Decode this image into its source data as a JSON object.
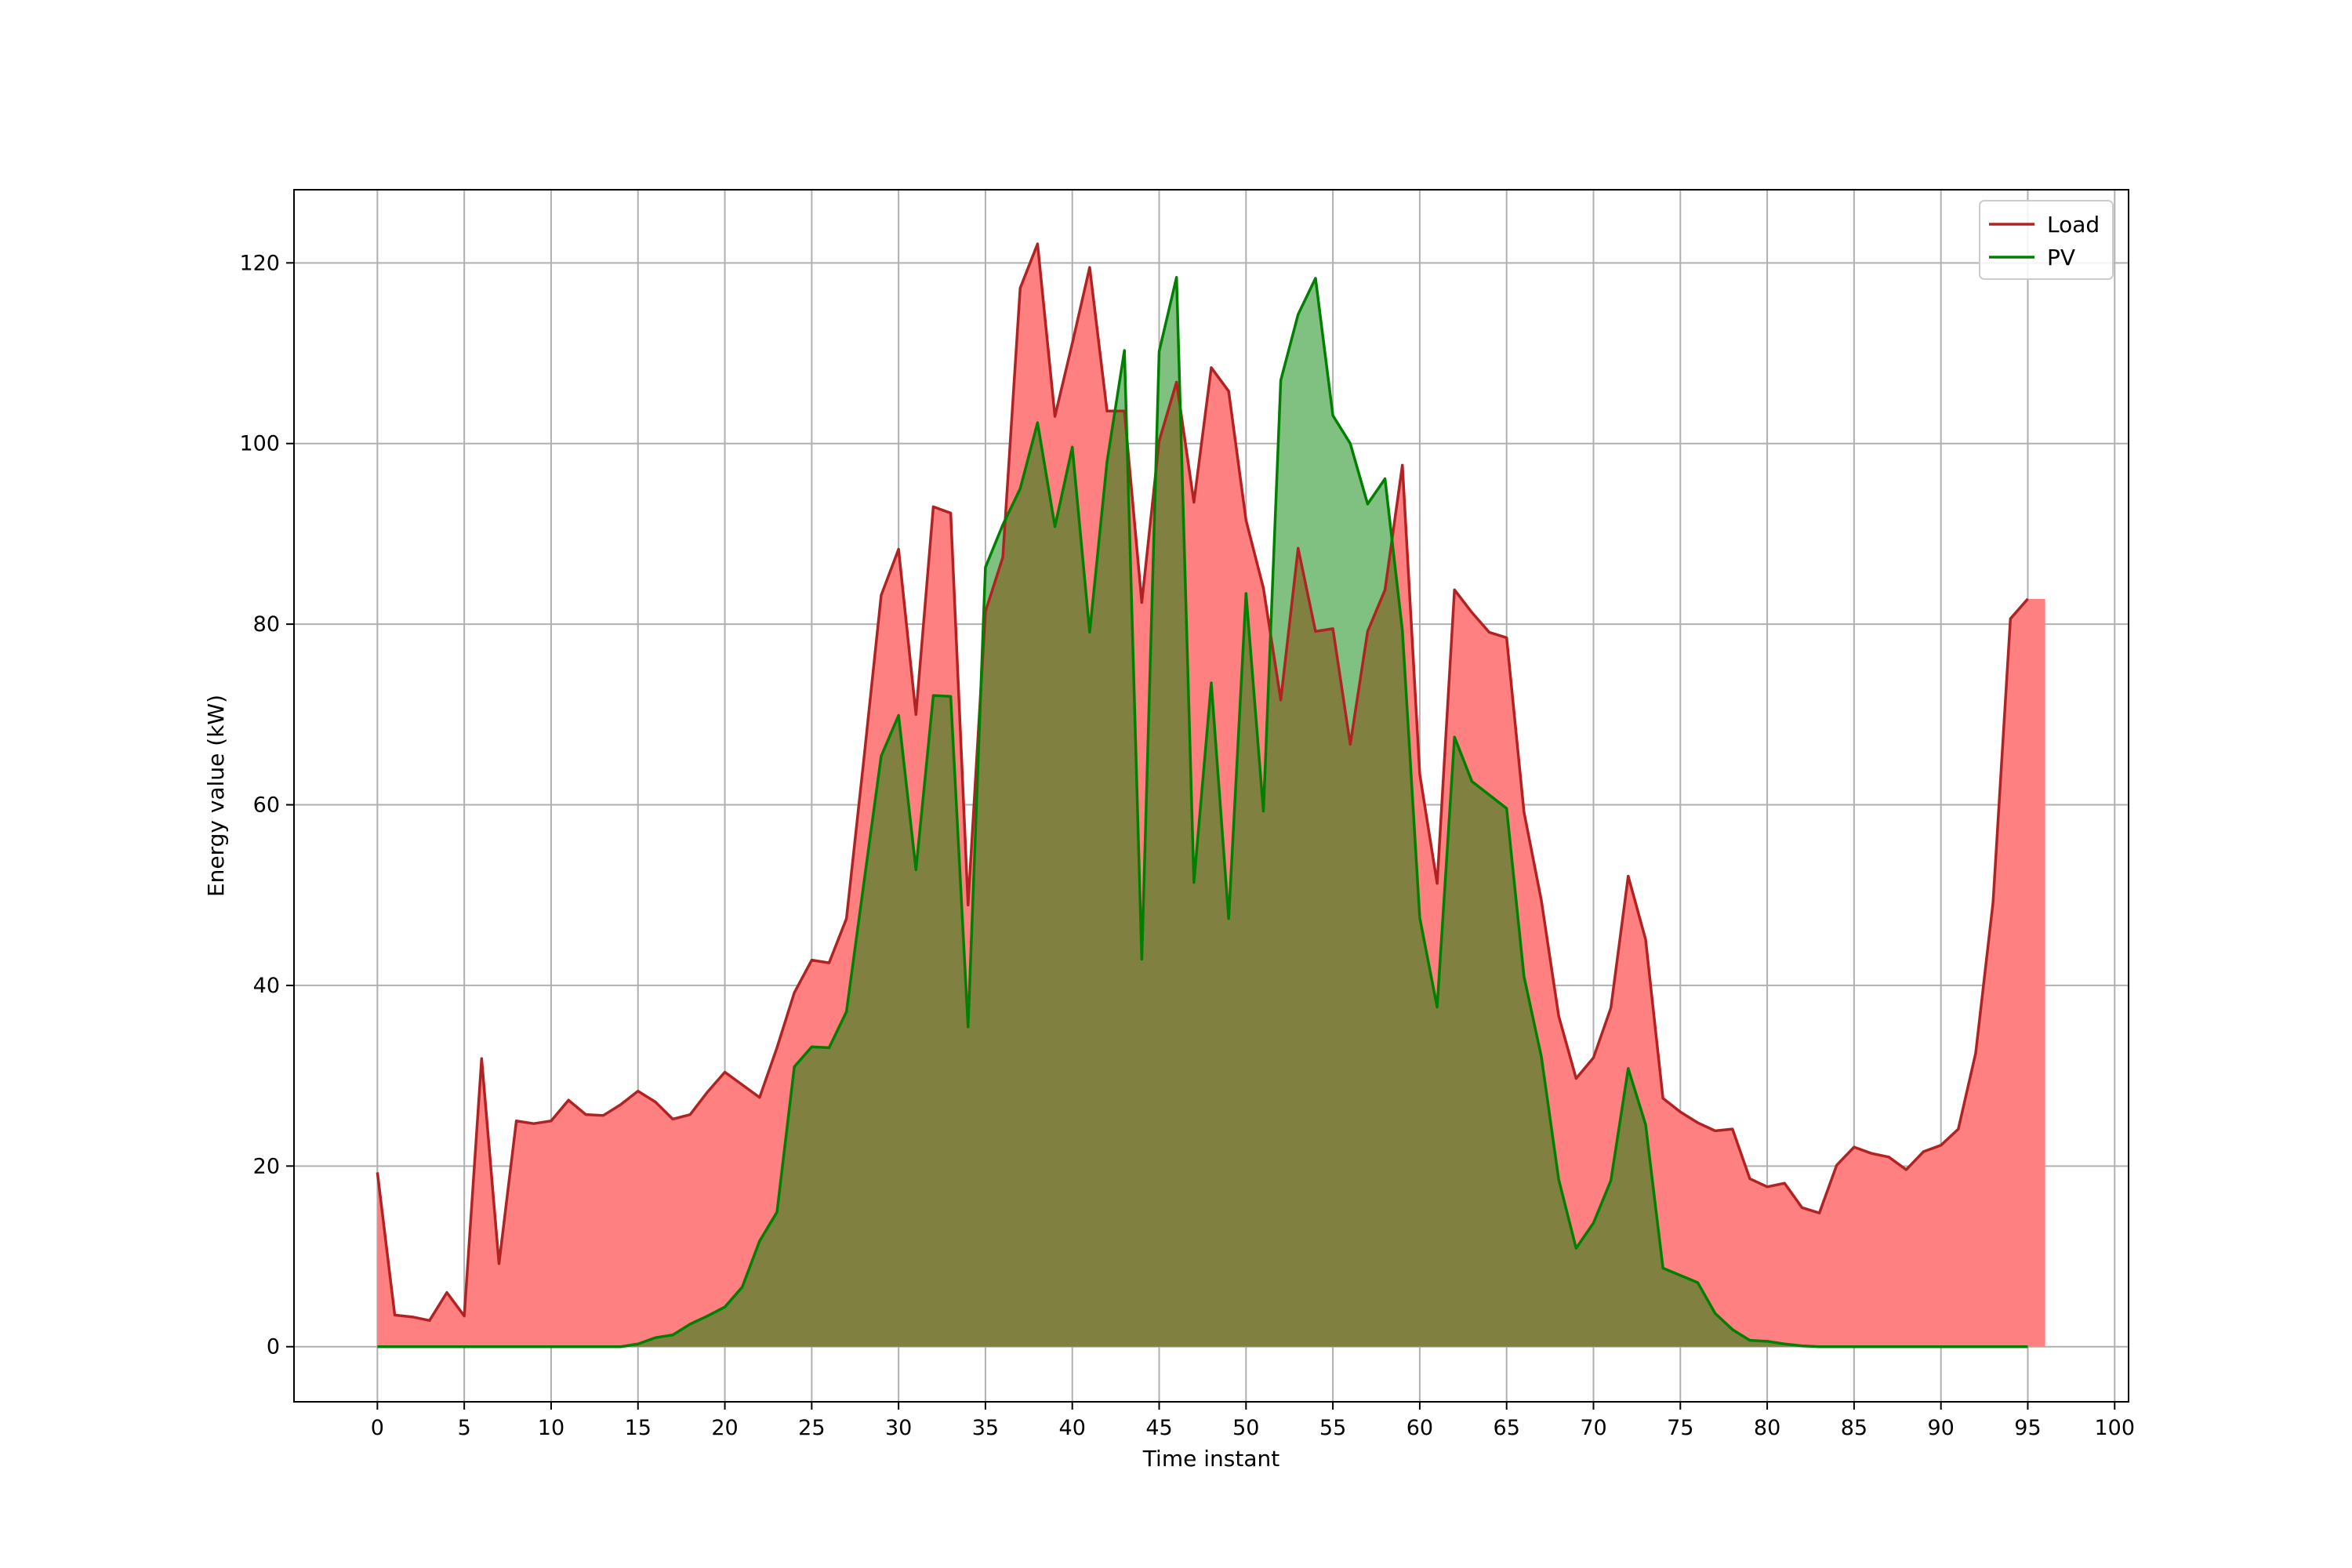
{
  "chart_data": {
    "type": "area",
    "title": "",
    "xlabel": "Time instant",
    "ylabel": "Energy value (kW)",
    "xlim": [
      -4.8,
      100.8
    ],
    "ylim": [
      -6.1,
      128.1
    ],
    "xticks": [
      0,
      5,
      10,
      15,
      20,
      25,
      30,
      35,
      40,
      45,
      50,
      55,
      60,
      65,
      70,
      75,
      80,
      85,
      90,
      95,
      100
    ],
    "yticks": [
      0,
      20,
      40,
      60,
      80,
      100,
      120
    ],
    "grid": true,
    "legend_position": "top-right",
    "x": [
      0,
      1,
      2,
      3,
      4,
      5,
      6,
      7,
      8,
      9,
      10,
      11,
      12,
      13,
      14,
      15,
      16,
      17,
      18,
      19,
      20,
      21,
      22,
      23,
      24,
      25,
      26,
      27,
      28,
      29,
      30,
      31,
      32,
      33,
      34,
      35,
      36,
      37,
      38,
      39,
      40,
      41,
      42,
      43,
      44,
      45,
      46,
      47,
      48,
      49,
      50,
      51,
      52,
      53,
      54,
      55,
      56,
      57,
      58,
      59,
      60,
      61,
      62,
      63,
      64,
      65,
      66,
      67,
      68,
      69,
      70,
      71,
      72,
      73,
      74,
      75,
      76,
      77,
      78,
      79,
      80,
      81,
      82,
      83,
      84,
      85,
      86,
      87,
      88,
      89,
      90,
      91,
      92,
      93,
      94,
      95
    ],
    "series": [
      {
        "name": "Load",
        "line_color": "#b22222",
        "fill_color": "#ff8080",
        "values": [
          19.3,
          3.5,
          3.3,
          2.9,
          6.0,
          3.4,
          31.9,
          9.2,
          25.0,
          24.7,
          25.0,
          27.3,
          25.7,
          25.6,
          26.8,
          28.3,
          27.1,
          25.2,
          25.7,
          28.2,
          30.4,
          29.0,
          27.6,
          33.1,
          39.2,
          42.8,
          42.5,
          47.4,
          65.0,
          83.2,
          88.3,
          70.0,
          93.0,
          92.3,
          48.9,
          81.4,
          87.4,
          117.2,
          122.1,
          103.0,
          111.1,
          119.5,
          103.6,
          103.6,
          82.4,
          100.3,
          106.8,
          93.5,
          108.4,
          105.8,
          91.5,
          84.0,
          71.6,
          88.4,
          79.2,
          79.5,
          66.7,
          79.2,
          83.8,
          97.6,
          63.4,
          51.3,
          83.8,
          81.3,
          79.1,
          78.5,
          59.2,
          49.4,
          36.6,
          29.7,
          32.0,
          37.5,
          52.1,
          45.1,
          27.5,
          26.0,
          24.8,
          23.9,
          24.1,
          18.6,
          17.7,
          18.1,
          15.4,
          14.8,
          20.1,
          22.1,
          21.4,
          21.0,
          19.6,
          21.6,
          22.3,
          24.1,
          32.5,
          49.2,
          80.6,
          82.8
        ]
      },
      {
        "name": "PV",
        "line_color": "#008000",
        "fill_color": "#80c080",
        "values": [
          0,
          0,
          0,
          0,
          0,
          0,
          0,
          0,
          0,
          0,
          0,
          0,
          0,
          0,
          0,
          0.3,
          1.0,
          1.3,
          2.5,
          3.4,
          4.4,
          6.6,
          11.7,
          14.9,
          31.0,
          33.2,
          33.1,
          37.1,
          51.3,
          65.4,
          69.9,
          52.8,
          72.1,
          72.0,
          35.4,
          86.3,
          91.0,
          95.0,
          102.3,
          90.8,
          99.6,
          79.1,
          98.0,
          110.3,
          42.9,
          110.2,
          118.4,
          51.4,
          73.5,
          47.4,
          83.4,
          59.3,
          107.0,
          114.3,
          118.3,
          103.1,
          100.0,
          93.3,
          96.1,
          79.3,
          47.5,
          37.6,
          67.5,
          62.6,
          61.1,
          59.6,
          41.0,
          32.1,
          18.5,
          10.9,
          13.7,
          18.4,
          30.8,
          24.6,
          8.7,
          7.9,
          7.1,
          3.7,
          1.9,
          0.7,
          0.6,
          0.3,
          0.1,
          0,
          0,
          0,
          0,
          0,
          0,
          0,
          0,
          0,
          0,
          0,
          0,
          0
        ]
      }
    ],
    "overlap_fill_color": "#808040"
  }
}
